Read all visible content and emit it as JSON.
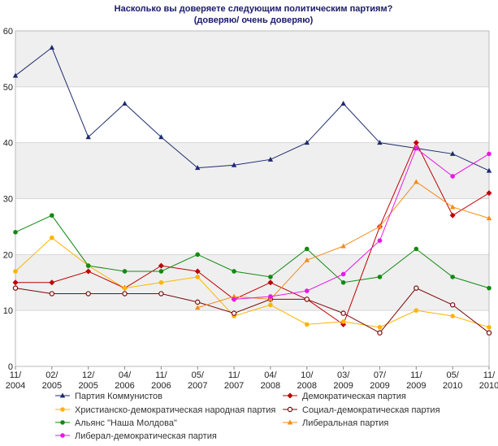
{
  "chart_data": {
    "type": "line",
    "title": "Насколько вы доверяете следующим политическим партиям?",
    "subtitle": "(доверяю/ очень доверяю)",
    "xlabel": "",
    "ylabel": "",
    "ylim": [
      0,
      60
    ],
    "yticks": [
      0,
      10,
      20,
      30,
      40,
      50,
      60
    ],
    "categories": [
      [
        "11/",
        "2004"
      ],
      [
        "02/",
        "2005"
      ],
      [
        "12/",
        "2005"
      ],
      [
        "04/",
        "2006"
      ],
      [
        "11/",
        "2006"
      ],
      [
        "05/",
        "2007"
      ],
      [
        "11/",
        "2007"
      ],
      [
        "04/",
        "2008"
      ],
      [
        "10/",
        "2008"
      ],
      [
        "03/",
        "2009"
      ],
      [
        "07/",
        "2009"
      ],
      [
        "11/",
        "2009"
      ],
      [
        "05/",
        "2010"
      ],
      [
        "11/",
        "2010"
      ]
    ],
    "series": [
      {
        "name": "Партия Коммунистов",
        "color": "#1f2b6e",
        "marker": "triangle",
        "values": [
          52,
          57,
          41,
          47,
          41,
          35.5,
          36,
          37,
          40,
          47,
          40,
          39,
          38,
          35
        ]
      },
      {
        "name": "Демократическая партия",
        "color": "#c00000",
        "marker": "diamond",
        "values": [
          15,
          15,
          17,
          14,
          18,
          17,
          12,
          15,
          12,
          7.5,
          25,
          40,
          27,
          31
        ]
      },
      {
        "name": "Христианско-демократическая народная партия",
        "color": "#ffb400",
        "marker": "circle",
        "values": [
          17,
          23,
          18,
          14,
          15,
          16,
          9,
          11,
          7.5,
          8,
          7,
          10,
          9,
          7
        ]
      },
      {
        "name": "Социал-демократическая партия",
        "color": "#7a0a0a",
        "marker": "open-circle",
        "values": [
          14,
          13,
          13,
          13,
          13,
          11.5,
          9.5,
          12,
          12,
          9.5,
          6,
          14,
          11,
          6
        ]
      },
      {
        "name": "Альянс \"Наша Молдова\"",
        "color": "#138a13",
        "marker": "circle",
        "values": [
          24,
          27,
          18,
          17,
          17,
          20,
          17,
          16,
          21,
          15,
          16,
          21,
          16,
          14
        ]
      },
      {
        "name": "Либеральная партия",
        "color": "#f28c1a",
        "marker": "triangle",
        "values": [
          null,
          null,
          null,
          null,
          null,
          10.5,
          12.5,
          12,
          19,
          21.5,
          25,
          33,
          28.5,
          26.5
        ]
      },
      {
        "name": "Либерал-демократическая партия",
        "color": "#e619e6",
        "marker": "circle",
        "values": [
          null,
          null,
          null,
          null,
          null,
          null,
          12,
          12.5,
          13.5,
          16.5,
          22.5,
          39,
          34,
          38
        ]
      }
    ],
    "legend_position": "bottom"
  }
}
